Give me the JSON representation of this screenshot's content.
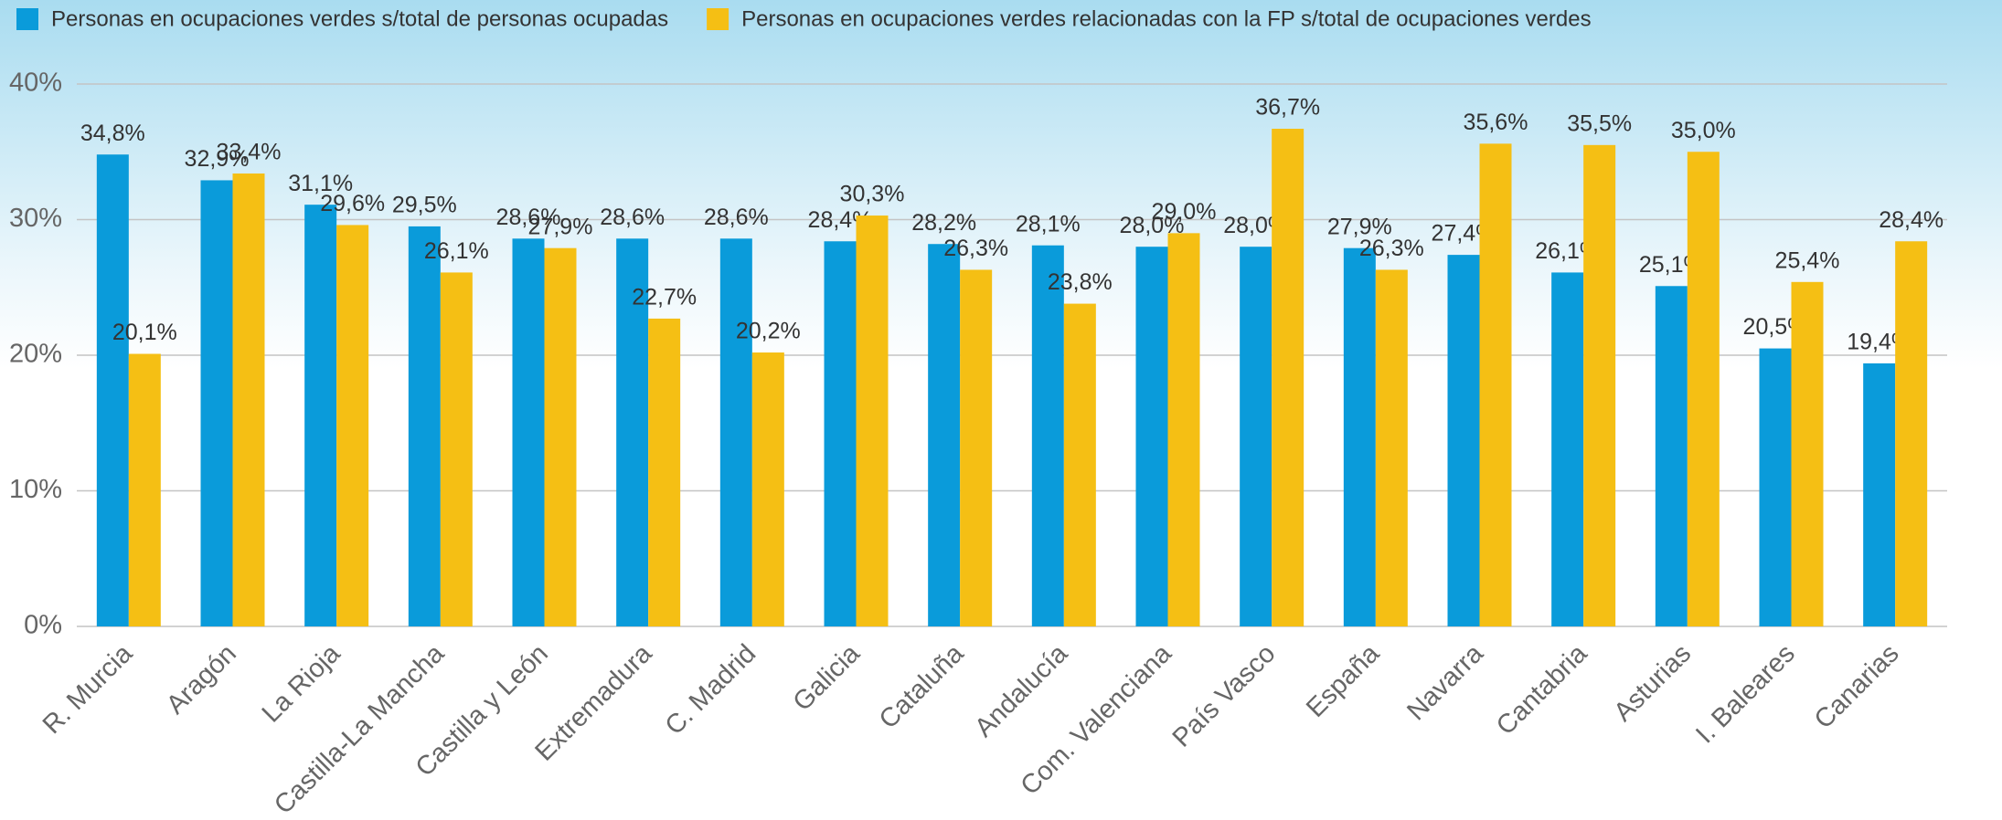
{
  "chart_data": {
    "type": "bar",
    "categories": [
      "R. Murcia",
      "Aragón",
      "La Rioja",
      "Castilla-La Mancha",
      "Castilla y León",
      "Extremadura",
      "C. Madrid",
      "Galicia",
      "Cataluña",
      "Andalucía",
      "Com. Valenciana",
      "País Vasco",
      "España",
      "Navarra",
      "Cantabria",
      "Asturias",
      "I. Baleares",
      "Canarias"
    ],
    "series": [
      {
        "name": "Personas en ocupaciones verdes s/total de personas ocupadas",
        "color": "#0a9bda",
        "values": [
          34.8,
          32.9,
          31.1,
          29.5,
          28.6,
          28.6,
          28.6,
          28.4,
          28.2,
          28.1,
          28.0,
          28.0,
          27.9,
          27.4,
          26.1,
          25.1,
          20.5,
          19.4
        ],
        "value_labels": [
          "34,8%",
          "32,9%",
          "31,1%",
          "29,5%",
          "28,6%",
          "28,6%",
          "28,6%",
          "28,4%",
          "28,2%",
          "28,1%",
          "28,0%",
          "28,0%",
          "27,9%",
          "27,4%",
          "26,1%",
          "25,1%",
          "20,5%",
          "19,4%"
        ]
      },
      {
        "name": "Personas en ocupaciones verdes relacionadas con la FP s/total de ocupaciones verdes",
        "color": "#f5bf14",
        "values": [
          20.1,
          33.4,
          29.6,
          26.1,
          27.9,
          22.7,
          20.2,
          30.3,
          26.3,
          23.8,
          29.0,
          36.7,
          26.3,
          35.6,
          35.5,
          35.0,
          25.4,
          28.4
        ],
        "value_labels": [
          "20,1%",
          "33,4%",
          "29,6%",
          "26,1%",
          "27,9%",
          "22,7%",
          "20,2%",
          "30,3%",
          "26,3%",
          "23,8%",
          "29,0%",
          "36,7%",
          "26,3%",
          "35,6%",
          "35,5%",
          "35,0%",
          "25,4%",
          "28,4%"
        ]
      }
    ],
    "ylim": [
      0,
      40
    ],
    "yticks": [
      {
        "value": 0,
        "label": "0%"
      },
      {
        "value": 10,
        "label": "10%"
      },
      {
        "value": 20,
        "label": "20%"
      },
      {
        "value": 30,
        "label": "30%"
      },
      {
        "value": 40,
        "label": "40%"
      }
    ],
    "grid": true,
    "legend": "top"
  }
}
